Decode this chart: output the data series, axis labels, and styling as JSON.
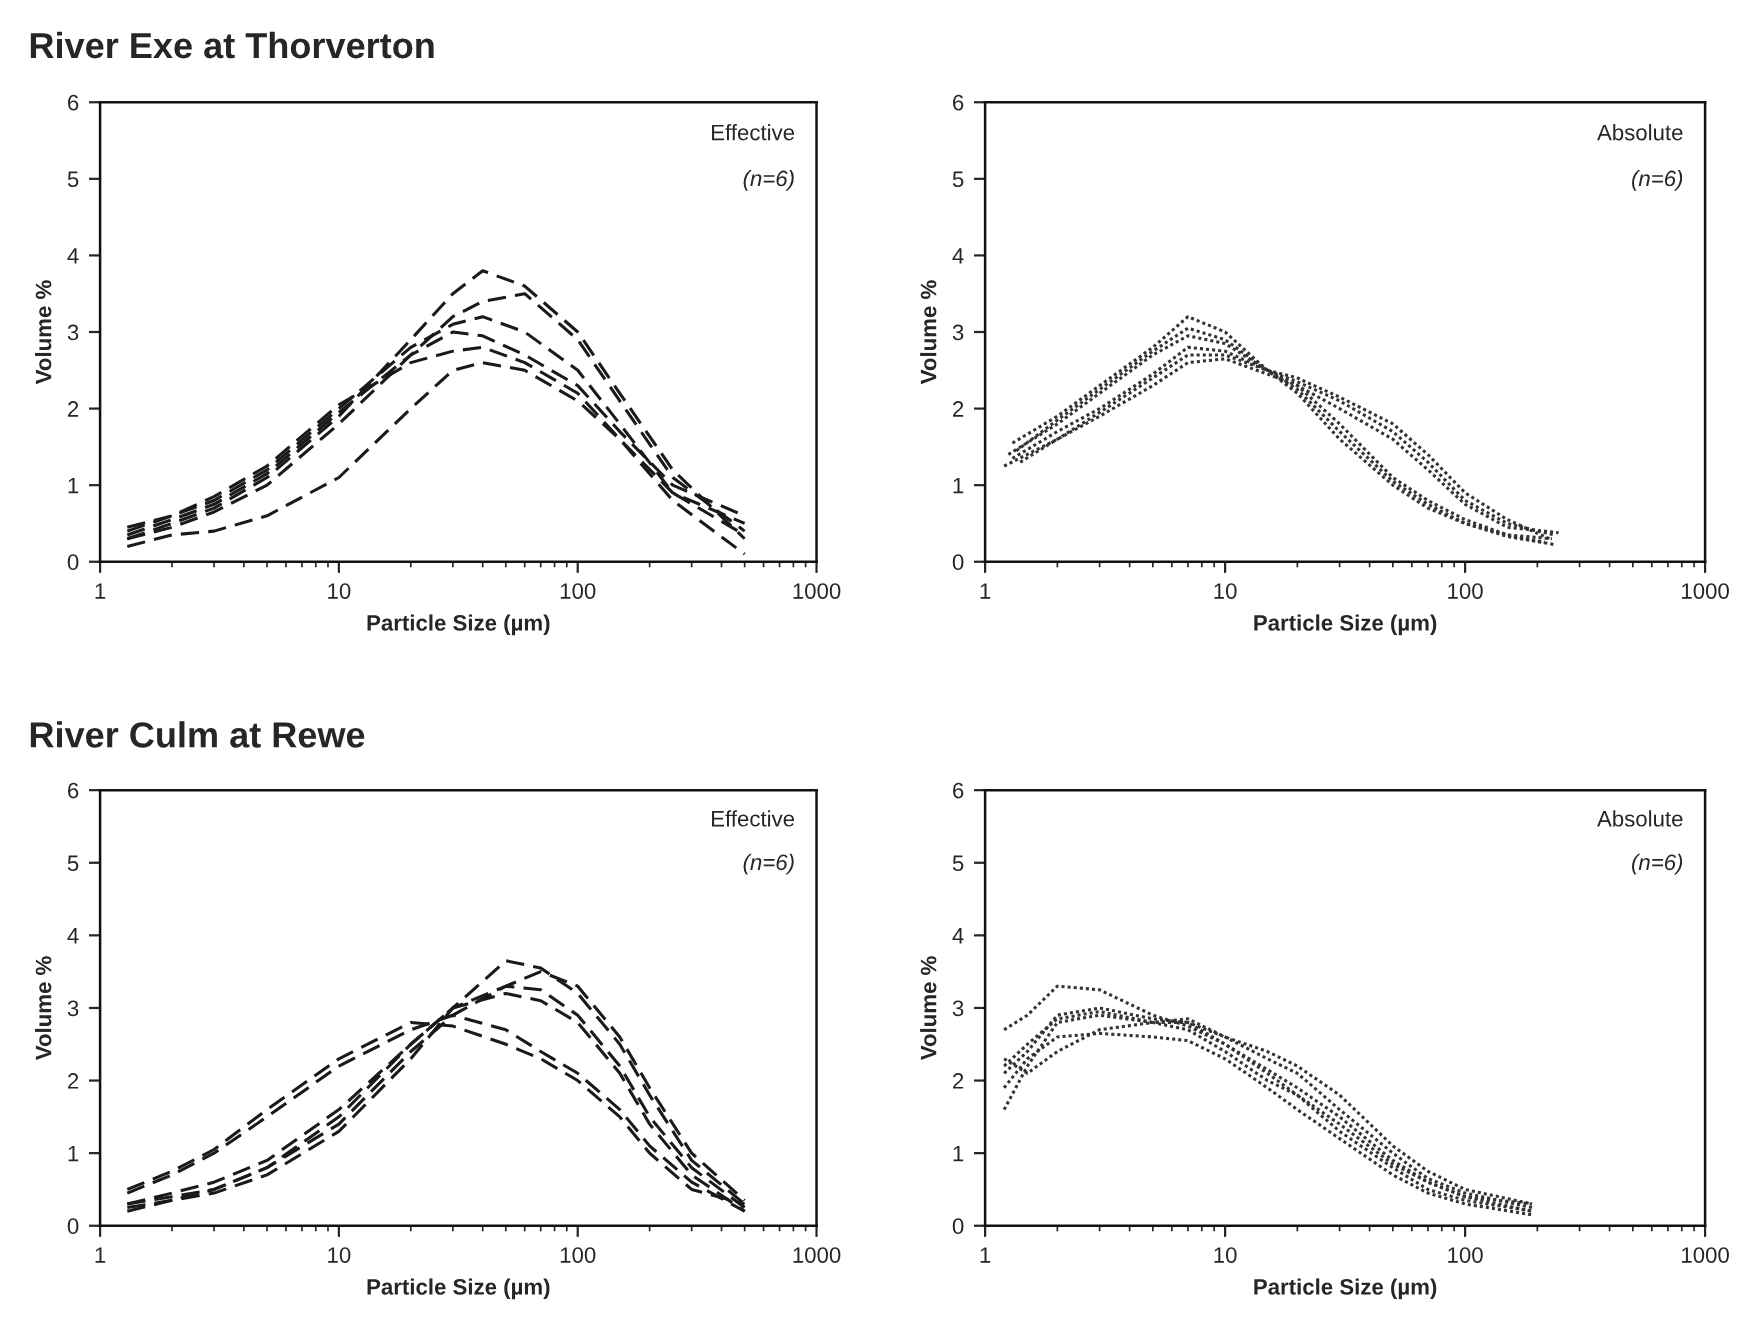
{
  "chart_data": [
    {
      "type": "line",
      "title": "River Exe at Thorverton",
      "xlabel": "Particle Size (µm)",
      "ylabel": "Volume %",
      "annotations": [
        "Effective",
        "(n=6)"
      ],
      "log": "x",
      "xlim": [
        1,
        1000
      ],
      "xticks": [
        1,
        10,
        100,
        1000
      ],
      "ylim": [
        0,
        6
      ],
      "yticks": [
        0,
        1,
        2,
        3,
        4,
        5,
        6
      ],
      "line_style": "dashed",
      "x": [
        1.3,
        2,
        3,
        5,
        10,
        20,
        30,
        40,
        60,
        100,
        150,
        250,
        500
      ],
      "series": [
        {
          "color": "#1a1a1a",
          "values": [
            0.3,
            0.5,
            0.7,
            1.1,
            1.9,
            2.9,
            3.5,
            3.8,
            3.6,
            3.0,
            2.2,
            1.2,
            0.3
          ]
        },
        {
          "color": "#1a1a1a",
          "values": [
            0.3,
            0.45,
            0.65,
            1.0,
            1.8,
            2.7,
            3.2,
            3.4,
            3.5,
            2.9,
            2.1,
            1.1,
            0.4
          ]
        },
        {
          "color": "#1a1a1a",
          "values": [
            0.4,
            0.6,
            0.8,
            1.2,
            2.0,
            2.8,
            3.1,
            3.2,
            3.0,
            2.5,
            1.8,
            0.9,
            0.35
          ]
        },
        {
          "color": "#1a1a1a",
          "values": [
            0.35,
            0.55,
            0.75,
            1.15,
            1.95,
            2.7,
            3.0,
            2.95,
            2.7,
            2.3,
            1.7,
            1.0,
            0.6
          ]
        },
        {
          "color": "#1a1a1a",
          "values": [
            0.45,
            0.6,
            0.85,
            1.25,
            2.05,
            2.6,
            2.75,
            2.8,
            2.6,
            2.2,
            1.6,
            0.9,
            0.5
          ]
        },
        {
          "color": "#1a1a1a",
          "values": [
            0.2,
            0.35,
            0.4,
            0.6,
            1.1,
            2.0,
            2.5,
            2.6,
            2.5,
            2.1,
            1.6,
            0.8,
            0.1
          ]
        }
      ]
    },
    {
      "type": "line",
      "xlabel": "Particle Size (µm)",
      "ylabel": "Volume %",
      "annotations": [
        "Absolute",
        "(n=6)"
      ],
      "log": "x",
      "xlim": [
        1,
        1000
      ],
      "xticks": [
        1,
        10,
        100,
        1000
      ],
      "ylim": [
        0,
        6
      ],
      "yticks": [
        0,
        1,
        2,
        3,
        4,
        5,
        6
      ],
      "line_style": "dotted",
      "series": [
        {
          "color": "#333333",
          "x": [
            1.3,
            2,
            3,
            5,
            7,
            10,
            15,
            20,
            30,
            50,
            70,
            100,
            150,
            230
          ],
          "values": [
            1.55,
            1.9,
            2.3,
            2.8,
            3.2,
            3.0,
            2.5,
            2.2,
            1.6,
            1.0,
            0.7,
            0.5,
            0.35,
            0.3
          ]
        },
        {
          "color": "#333333",
          "x": [
            1.35,
            2,
            3,
            5,
            7,
            10,
            15,
            20,
            30,
            50,
            70,
            100,
            150,
            240
          ],
          "values": [
            1.45,
            1.85,
            2.25,
            2.75,
            3.05,
            2.9,
            2.5,
            2.25,
            1.7,
            1.05,
            0.75,
            0.5,
            0.33,
            0.22
          ]
        },
        {
          "color": "#333333",
          "x": [
            1.25,
            2,
            3,
            5,
            7,
            10,
            15,
            20,
            30,
            50,
            70,
            100,
            150,
            215
          ],
          "values": [
            1.4,
            1.8,
            2.2,
            2.7,
            2.95,
            2.85,
            2.5,
            2.3,
            1.8,
            1.1,
            0.8,
            0.55,
            0.35,
            0.25
          ]
        },
        {
          "color": "#333333",
          "x": [
            1.3,
            2,
            3,
            5,
            7,
            10,
            15,
            20,
            30,
            50,
            70,
            100,
            150,
            235
          ],
          "values": [
            1.35,
            1.7,
            2.0,
            2.45,
            2.8,
            2.75,
            2.5,
            2.35,
            2.1,
            1.7,
            1.3,
            0.8,
            0.5,
            0.35
          ]
        },
        {
          "color": "#333333",
          "x": [
            1.4,
            2,
            3,
            5,
            7,
            10,
            15,
            20,
            30,
            50,
            70,
            100,
            150,
            225
          ],
          "values": [
            1.3,
            1.6,
            1.95,
            2.4,
            2.7,
            2.7,
            2.5,
            2.4,
            2.15,
            1.8,
            1.4,
            0.9,
            0.55,
            0.3
          ]
        },
        {
          "color": "#333333",
          "x": [
            1.2,
            2,
            3,
            5,
            7,
            10,
            15,
            20,
            30,
            50,
            70,
            100,
            150,
            245
          ],
          "values": [
            1.25,
            1.6,
            1.9,
            2.3,
            2.6,
            2.65,
            2.45,
            2.3,
            2.0,
            1.6,
            1.2,
            0.75,
            0.45,
            0.38
          ]
        }
      ]
    },
    {
      "type": "line",
      "title": "River Culm at Rewe",
      "xlabel": "Particle Size (µm)",
      "ylabel": "Volume %",
      "annotations": [
        "Effective",
        "(n=6)"
      ],
      "log": "x",
      "xlim": [
        1,
        1000
      ],
      "xticks": [
        1,
        10,
        100,
        1000
      ],
      "ylim": [
        0,
        6
      ],
      "yticks": [
        0,
        1,
        2,
        3,
        4,
        5,
        6
      ],
      "line_style": "dashed",
      "x": [
        1.3,
        2,
        3,
        5,
        10,
        20,
        30,
        50,
        70,
        100,
        150,
        200,
        300,
        500
      ],
      "series": [
        {
          "color": "#1a1a1a",
          "values": [
            0.25,
            0.35,
            0.45,
            0.7,
            1.3,
            2.3,
            3.0,
            3.65,
            3.55,
            3.2,
            2.5,
            1.8,
            0.9,
            0.3
          ]
        },
        {
          "color": "#1a1a1a",
          "values": [
            0.3,
            0.4,
            0.5,
            0.8,
            1.4,
            2.4,
            2.9,
            3.3,
            3.5,
            3.3,
            2.6,
            1.9,
            1.0,
            0.35
          ]
        },
        {
          "color": "#1a1a1a",
          "values": [
            0.2,
            0.35,
            0.5,
            0.8,
            1.5,
            2.5,
            3.0,
            3.3,
            3.25,
            2.9,
            2.2,
            1.5,
            0.8,
            0.25
          ]
        },
        {
          "color": "#1a1a1a",
          "values": [
            0.3,
            0.45,
            0.6,
            0.9,
            1.6,
            2.5,
            3.0,
            3.2,
            3.1,
            2.8,
            2.1,
            1.4,
            0.7,
            0.2
          ]
        },
        {
          "color": "#1a1a1a",
          "values": [
            0.45,
            0.7,
            1.0,
            1.5,
            2.2,
            2.7,
            2.9,
            2.7,
            2.4,
            2.1,
            1.6,
            1.1,
            0.6,
            0.2
          ]
        },
        {
          "color": "#1a1a1a",
          "values": [
            0.5,
            0.75,
            1.05,
            1.6,
            2.3,
            2.8,
            2.75,
            2.5,
            2.3,
            2.0,
            1.5,
            1.0,
            0.5,
            0.3
          ]
        }
      ]
    },
    {
      "type": "line",
      "xlabel": "Particle Size (µm)",
      "ylabel": "Volume %",
      "annotations": [
        "Absolute",
        "(n=6)"
      ],
      "log": "x",
      "xlim": [
        1,
        1000
      ],
      "xticks": [
        1,
        10,
        100,
        1000
      ],
      "ylim": [
        0,
        6
      ],
      "yticks": [
        0,
        1,
        2,
        3,
        4,
        5,
        6
      ],
      "line_style": "dotted",
      "x": [
        1.2,
        1.5,
        2,
        3,
        5,
        7,
        10,
        15,
        20,
        30,
        50,
        70,
        100,
        190
      ],
      "series": [
        {
          "color": "#333333",
          "values": [
            2.7,
            2.9,
            3.3,
            3.25,
            2.9,
            2.75,
            2.5,
            2.15,
            1.9,
            1.5,
            0.9,
            0.6,
            0.4,
            0.2
          ]
        },
        {
          "color": "#333333",
          "values": [
            2.1,
            2.4,
            2.9,
            3.0,
            2.85,
            2.8,
            2.5,
            2.1,
            1.8,
            1.4,
            0.85,
            0.6,
            0.4,
            0.3
          ]
        },
        {
          "color": "#333333",
          "values": [
            2.2,
            2.5,
            2.85,
            2.95,
            2.8,
            2.85,
            2.6,
            2.3,
            2.1,
            1.6,
            1.0,
            0.65,
            0.45,
            0.25
          ]
        },
        {
          "color": "#333333",
          "values": [
            1.6,
            2.2,
            2.8,
            2.9,
            2.8,
            2.8,
            2.6,
            2.4,
            2.2,
            1.8,
            1.1,
            0.75,
            0.5,
            0.3
          ]
        },
        {
          "color": "#333333",
          "values": [
            1.9,
            2.3,
            2.6,
            2.65,
            2.6,
            2.55,
            2.3,
            1.9,
            1.6,
            1.2,
            0.7,
            0.45,
            0.3,
            0.15
          ]
        },
        {
          "color": "#333333",
          "values": [
            2.3,
            2.1,
            2.4,
            2.7,
            2.8,
            2.7,
            2.4,
            2.0,
            1.8,
            1.3,
            0.8,
            0.5,
            0.35,
            0.2
          ]
        }
      ]
    }
  ]
}
